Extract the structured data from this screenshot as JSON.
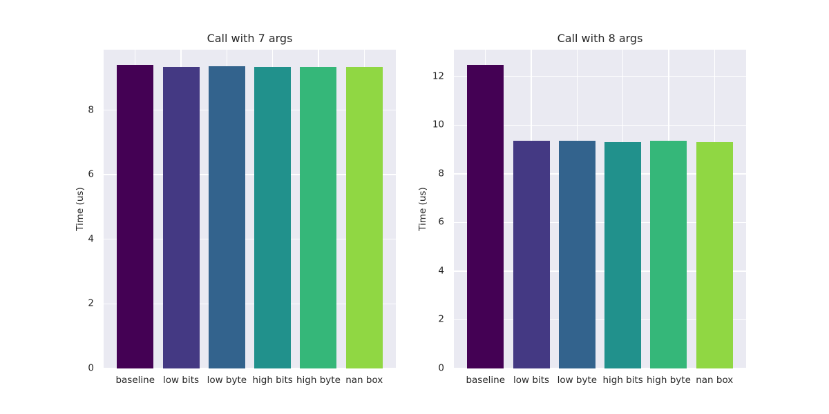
{
  "figure": {
    "background": "#ffffff",
    "axes_background": "#eaeaf2",
    "grid_color": "#ffffff",
    "text_color": "#262626"
  },
  "chart_data": [
    {
      "type": "bar",
      "title": "Call with 7 args",
      "xlabel": "",
      "ylabel": "Time (us)",
      "categories": [
        "baseline",
        "low bits",
        "low byte",
        "high bits",
        "high byte",
        "nan box"
      ],
      "values": [
        9.4,
        9.34,
        9.35,
        9.34,
        9.34,
        9.34
      ],
      "yticks": [
        0,
        2,
        4,
        6,
        8
      ],
      "ylim": [
        0,
        9.87
      ],
      "grid": true,
      "legend": false,
      "bar_colors": [
        "#440154",
        "#443983",
        "#33638d",
        "#21918c",
        "#35b779",
        "#90d743"
      ]
    },
    {
      "type": "bar",
      "title": "Call with 8 args",
      "xlabel": "",
      "ylabel": "Time (us)",
      "categories": [
        "baseline",
        "low bits",
        "low byte",
        "high bits",
        "high byte",
        "nan box"
      ],
      "values": [
        12.48,
        9.35,
        9.35,
        9.31,
        9.35,
        9.29
      ],
      "yticks": [
        0,
        2,
        4,
        6,
        8,
        10,
        12
      ],
      "ylim": [
        0,
        13.1
      ],
      "grid": true,
      "legend": false,
      "bar_colors": [
        "#440154",
        "#443983",
        "#33638d",
        "#21918c",
        "#35b779",
        "#90d743"
      ]
    }
  ]
}
